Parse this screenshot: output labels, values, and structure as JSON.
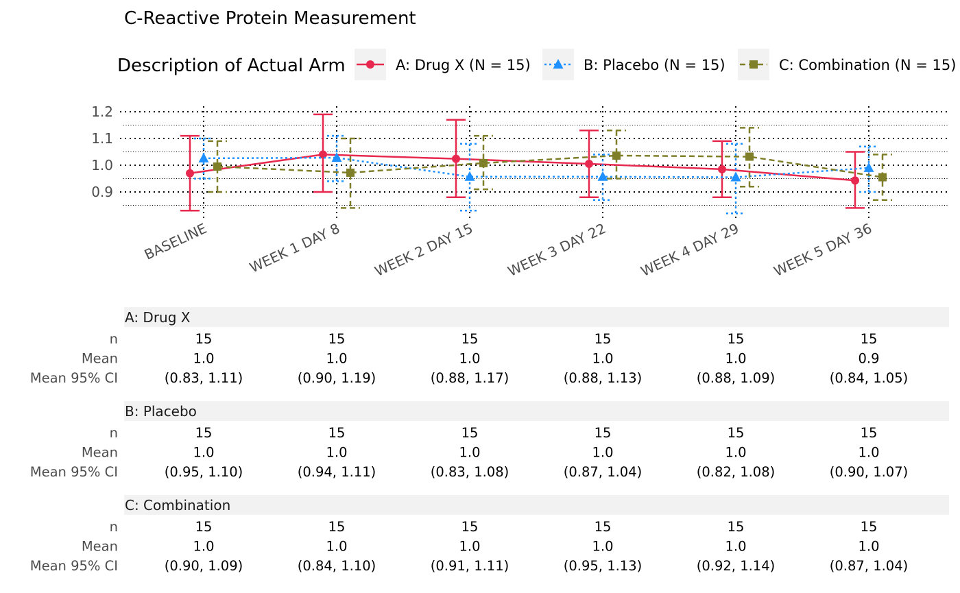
{
  "chart_data": {
    "type": "line",
    "title": "C-Reactive Protein Measurement",
    "legend": {
      "title": "Description of Actual Arm",
      "position": "top",
      "entries": [
        "A: Drug X (N = 15)",
        "B: Placebo (N = 15)",
        "C: Combination (N = 15)"
      ]
    },
    "categories": [
      "BASELINE",
      "WEEK 1 DAY 8",
      "WEEK 2 DAY 15",
      "WEEK 3 DAY 22",
      "WEEK 4 DAY 29",
      "WEEK 5 DAY 36"
    ],
    "ylim": [
      0.82,
      1.2
    ],
    "yticks": [
      "0.9",
      "1.0",
      "1.1",
      "1.2"
    ],
    "grid": true,
    "series": [
      {
        "name": "A: Drug X (N = 15)",
        "color": "#E8294F",
        "marker": "circle",
        "linestyle": "solid",
        "mean": [
          0.97,
          1.04,
          1.024,
          1.005,
          0.985,
          0.943
        ],
        "ci_low": [
          0.83,
          0.9,
          0.88,
          0.88,
          0.88,
          0.84
        ],
        "ci_high": [
          1.11,
          1.19,
          1.17,
          1.13,
          1.09,
          1.05
        ]
      },
      {
        "name": "B: Placebo (N = 15)",
        "color": "#1E90FF",
        "marker": "triangle",
        "linestyle": "dotted",
        "mean": [
          1.026,
          1.028,
          0.957,
          0.957,
          0.955,
          0.99
        ],
        "ci_low": [
          0.95,
          0.94,
          0.83,
          0.87,
          0.82,
          0.9
        ],
        "ci_high": [
          1.1,
          1.11,
          1.08,
          1.04,
          1.08,
          1.07
        ]
      },
      {
        "name": "C: Combination (N = 15)",
        "color": "#7F7F2A",
        "marker": "square",
        "linestyle": "dashed",
        "mean": [
          0.995,
          0.972,
          1.008,
          1.036,
          1.032,
          0.955
        ],
        "ci_low": [
          0.9,
          0.84,
          0.91,
          0.95,
          0.92,
          0.87
        ],
        "ci_high": [
          1.09,
          1.1,
          1.11,
          1.13,
          1.14,
          1.04
        ]
      }
    ]
  },
  "table": {
    "row_labels": [
      "n",
      "Mean",
      "Mean 95% CI"
    ],
    "groups": [
      {
        "header": "A: Drug X",
        "n": [
          "15",
          "15",
          "15",
          "15",
          "15",
          "15"
        ],
        "mean": [
          "1.0",
          "1.0",
          "1.0",
          "1.0",
          "1.0",
          "0.9"
        ],
        "ci": [
          "(0.83, 1.11)",
          "(0.90, 1.19)",
          "(0.88, 1.17)",
          "(0.88, 1.13)",
          "(0.88, 1.09)",
          "(0.84, 1.05)"
        ]
      },
      {
        "header": "B: Placebo",
        "n": [
          "15",
          "15",
          "15",
          "15",
          "15",
          "15"
        ],
        "mean": [
          "1.0",
          "1.0",
          "1.0",
          "1.0",
          "1.0",
          "1.0"
        ],
        "ci": [
          "(0.95, 1.10)",
          "(0.94, 1.11)",
          "(0.83, 1.08)",
          "(0.87, 1.04)",
          "(0.82, 1.08)",
          "(0.90, 1.07)"
        ]
      },
      {
        "header": "C: Combination",
        "n": [
          "15",
          "15",
          "15",
          "15",
          "15",
          "15"
        ],
        "mean": [
          "1.0",
          "1.0",
          "1.0",
          "1.0",
          "1.0",
          "1.0"
        ],
        "ci": [
          "(0.90, 1.09)",
          "(0.84, 1.10)",
          "(0.91, 1.11)",
          "(0.95, 1.13)",
          "(0.92, 1.14)",
          "(0.87, 1.04)"
        ]
      }
    ]
  }
}
